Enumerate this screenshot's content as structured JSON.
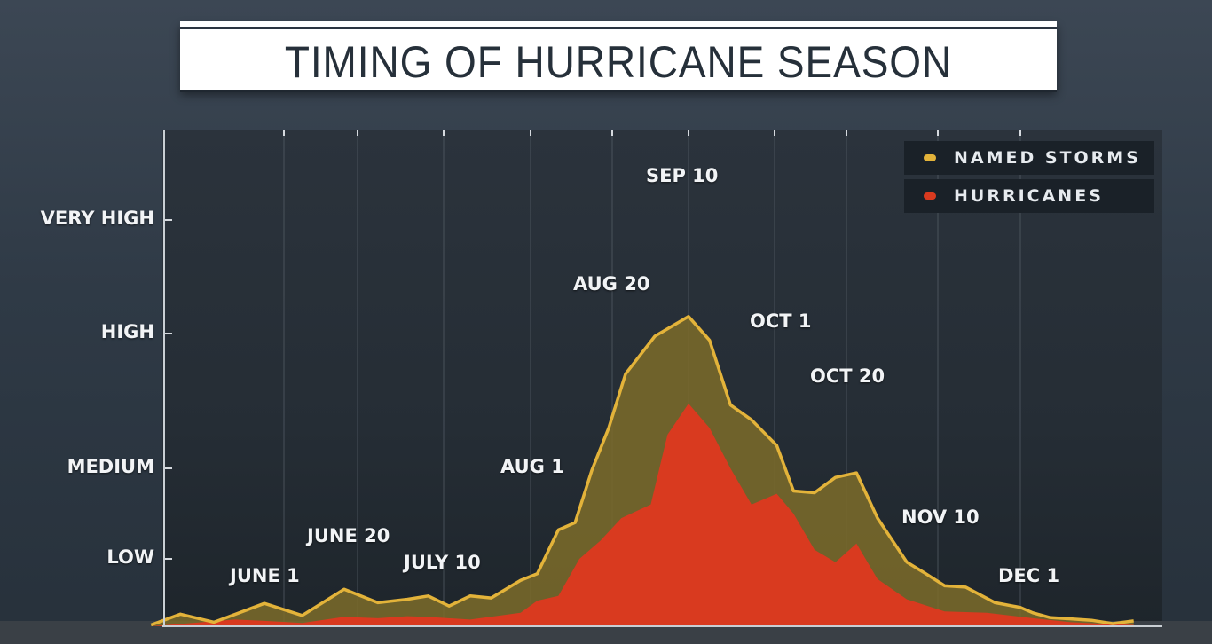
{
  "colors": {
    "named_storms": "#e3b33a",
    "named_storms_fill": "#7a6a2a",
    "hurricanes": "#d93a1f",
    "panel": "#272f38"
  },
  "chart_data": {
    "type": "area",
    "title": "TIMING OF HURRICANE SEASON",
    "y_levels": [
      "LOW",
      "MEDIUM",
      "HIGH",
      "VERY HIGH"
    ],
    "date_labels": [
      {
        "label": "JUNE 1",
        "date": "06-01"
      },
      {
        "label": "JUNE 20",
        "date": "06-20"
      },
      {
        "label": "JULY 10",
        "date": "07-10"
      },
      {
        "label": "AUG 1",
        "date": "08-01"
      },
      {
        "label": "AUG 20",
        "date": "08-20"
      },
      {
        "label": "SEP 10",
        "date": "09-10"
      },
      {
        "label": "OCT 1",
        "date": "10-01"
      },
      {
        "label": "OCT 20",
        "date": "10-20"
      },
      {
        "label": "NOV 10",
        "date": "11-10"
      },
      {
        "label": "DEC 1",
        "date": "12-01"
      }
    ],
    "legend": {
      "position": "top-right"
    },
    "series": [
      {
        "name": "NAMED STORMS",
        "points": [
          [
            "05-05",
            0.02
          ],
          [
            "05-12",
            0.18
          ],
          [
            "05-20",
            0.06
          ],
          [
            "06-01",
            0.34
          ],
          [
            "06-10",
            0.16
          ],
          [
            "06-20",
            0.55
          ],
          [
            "06-28",
            0.35
          ],
          [
            "07-05",
            0.4
          ],
          [
            "07-10",
            0.45
          ],
          [
            "07-15",
            0.3
          ],
          [
            "07-20",
            0.45
          ],
          [
            "07-25",
            0.42
          ],
          [
            "08-01",
            0.68
          ],
          [
            "08-05",
            0.78
          ],
          [
            "08-10",
            1.32
          ],
          [
            "08-14",
            1.4
          ],
          [
            "08-18",
            1.98
          ],
          [
            "08-22",
            2.3
          ],
          [
            "08-26",
            2.7
          ],
          [
            "09-02",
            2.98
          ],
          [
            "09-10",
            3.15
          ],
          [
            "09-15",
            2.95
          ],
          [
            "09-20",
            2.47
          ],
          [
            "09-25",
            2.36
          ],
          [
            "10-01",
            2.17
          ],
          [
            "10-05",
            1.75
          ],
          [
            "10-10",
            1.73
          ],
          [
            "10-15",
            1.9
          ],
          [
            "10-20",
            1.95
          ],
          [
            "10-25",
            1.45
          ],
          [
            "11-01",
            0.95
          ],
          [
            "11-05",
            0.8
          ],
          [
            "11-10",
            0.6
          ],
          [
            "11-15",
            0.58
          ],
          [
            "11-22",
            0.35
          ],
          [
            "11-28",
            0.28
          ],
          [
            "12-01",
            0.2
          ],
          [
            "12-05",
            0.13
          ],
          [
            "12-10",
            0.11
          ],
          [
            "12-15",
            0.09
          ],
          [
            "12-20",
            0.04
          ],
          [
            "12-25",
            0.08
          ]
        ]
      },
      {
        "name": "HURRICANES",
        "points": [
          [
            "05-05",
            0.0
          ],
          [
            "05-15",
            0.05
          ],
          [
            "05-25",
            0.1
          ],
          [
            "06-01",
            0.08
          ],
          [
            "06-10",
            0.05
          ],
          [
            "06-20",
            0.14
          ],
          [
            "06-28",
            0.12
          ],
          [
            "07-05",
            0.15
          ],
          [
            "07-10",
            0.14
          ],
          [
            "07-20",
            0.1
          ],
          [
            "08-01",
            0.2
          ],
          [
            "08-05",
            0.38
          ],
          [
            "08-10",
            0.45
          ],
          [
            "08-15",
            1.0
          ],
          [
            "08-20",
            1.2
          ],
          [
            "08-25",
            1.45
          ],
          [
            "09-01",
            1.6
          ],
          [
            "09-05",
            2.25
          ],
          [
            "09-10",
            2.48
          ],
          [
            "09-15",
            2.3
          ],
          [
            "09-20",
            2.0
          ],
          [
            "09-25",
            1.6
          ],
          [
            "10-01",
            1.72
          ],
          [
            "10-05",
            1.5
          ],
          [
            "10-10",
            1.1
          ],
          [
            "10-15",
            0.95
          ],
          [
            "10-20",
            1.17
          ],
          [
            "10-25",
            0.7
          ],
          [
            "11-01",
            0.4
          ],
          [
            "11-10",
            0.22
          ],
          [
            "11-20",
            0.2
          ],
          [
            "12-01",
            0.12
          ],
          [
            "12-10",
            0.06
          ],
          [
            "12-20",
            0.03
          ],
          [
            "12-25",
            0.02
          ]
        ]
      }
    ]
  }
}
